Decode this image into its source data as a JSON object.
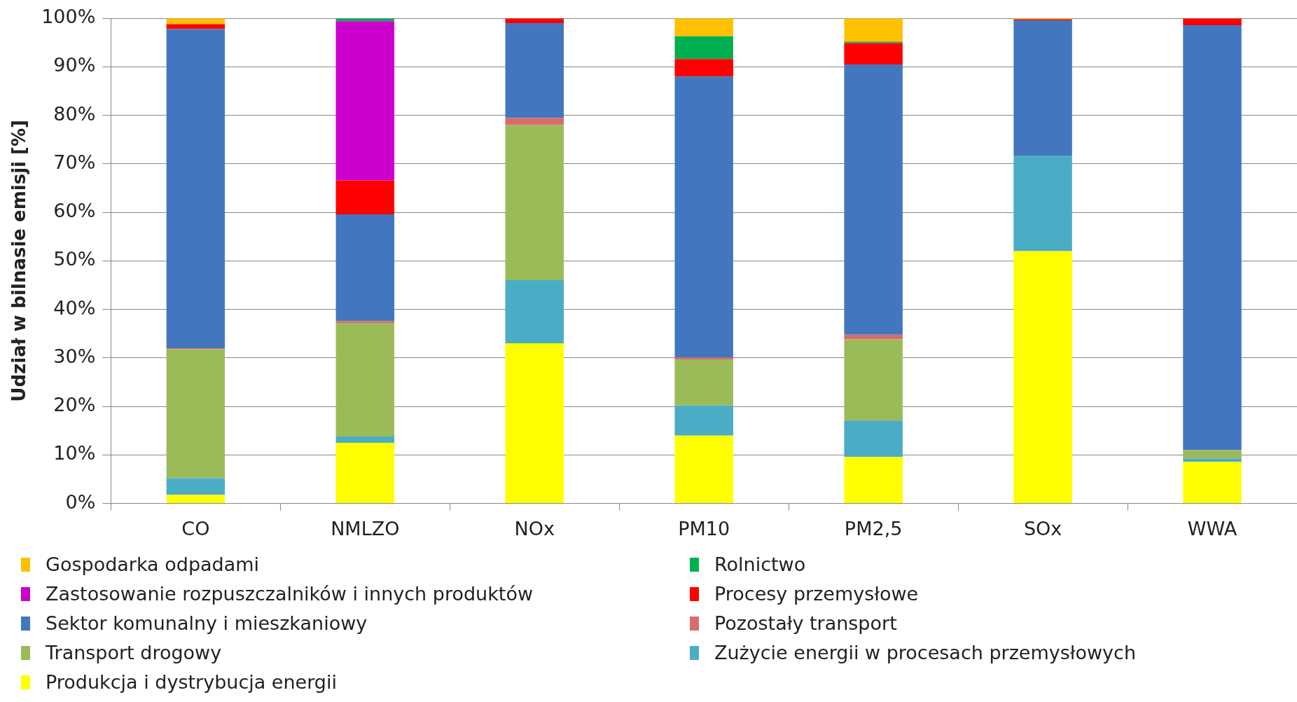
{
  "chart_data": {
    "type": "bar",
    "stacked": true,
    "ylabel": "Udział w bilnasie emisji [%]",
    "categories": [
      "CO",
      "NMLZO",
      "NOx",
      "PM10",
      "PM2,5",
      "SOx",
      "WWA"
    ],
    "ylim": [
      0,
      100
    ],
    "yticks": [
      {
        "value": 0,
        "label": "0%"
      },
      {
        "value": 10,
        "label": "10%"
      },
      {
        "value": 20,
        "label": "20%"
      },
      {
        "value": 30,
        "label": "30%"
      },
      {
        "value": 40,
        "label": "40%"
      },
      {
        "value": 50,
        "label": "50%"
      },
      {
        "value": 60,
        "label": "60%"
      },
      {
        "value": 70,
        "label": "70%"
      },
      {
        "value": 80,
        "label": "80%"
      },
      {
        "value": 90,
        "label": "90%"
      },
      {
        "value": 100,
        "label": "100%"
      }
    ],
    "grid": "y",
    "legend": "bottom",
    "series": [
      {
        "name": "Produkcja i dystrybucja energii",
        "color": "#ffff00",
        "values": [
          1.8,
          12.5,
          33,
          14,
          9.6,
          52,
          8.6
        ]
      },
      {
        "name": "Zużycie energii w procesach przemysłowych",
        "color": "#4bacc6",
        "values": [
          3.4,
          1.3,
          13,
          6.2,
          7.5,
          19.6,
          0.7
        ]
      },
      {
        "name": "Transport drogowy",
        "color": "#9bbb59",
        "values": [
          26.6,
          23.4,
          32,
          9.5,
          16.7,
          0,
          1.7
        ]
      },
      {
        "name": "Pozostały transport",
        "color": "#d96c6a",
        "values": [
          0.2,
          0.4,
          1.5,
          0.4,
          1.0,
          0,
          0
        ]
      },
      {
        "name": "Sektor komunalny i mieszkaniowy",
        "color": "#4277bf",
        "values": [
          65.8,
          22.0,
          19.5,
          57.9,
          55.7,
          28,
          87.6
        ]
      },
      {
        "name": "Procesy przemysłowe",
        "color": "#ff0000",
        "values": [
          1.0,
          7.0,
          1.0,
          3.6,
          4.4,
          0.2,
          1.4
        ]
      },
      {
        "name": "Zastosowanie rozpuszczalników i innych produktów",
        "color": "#cc00cc",
        "values": [
          0,
          32.8,
          0,
          0,
          0,
          0,
          0
        ]
      },
      {
        "name": "Rolnictwo",
        "color": "#00b050",
        "values": [
          0,
          0.6,
          0,
          4.7,
          0.3,
          0,
          0
        ]
      },
      {
        "name": "Gospodarka odpadami",
        "color": "#ffc000",
        "values": [
          1.2,
          0,
          0,
          3.7,
          4.8,
          0.2,
          0
        ]
      }
    ]
  }
}
